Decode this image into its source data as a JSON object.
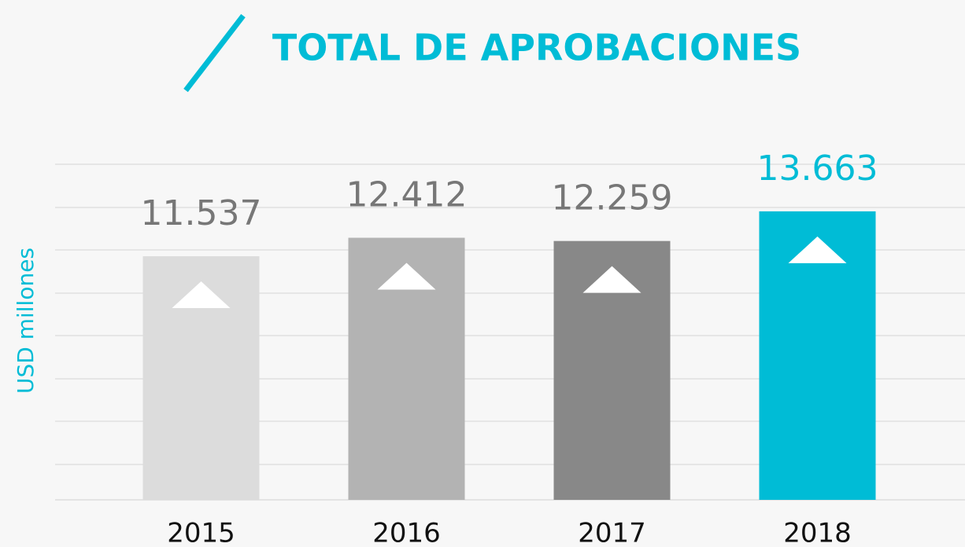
{
  "chart_data": {
    "type": "bar",
    "title": "TOTAL DE APROBACIONES",
    "y_label": "USD millones",
    "categories": [
      "2015",
      "2016",
      "2017",
      "2018"
    ],
    "values": [
      11537,
      12412,
      12259,
      13663
    ],
    "value_labels": [
      "11.537",
      "12.412",
      "12.259",
      "13.663"
    ],
    "colors": [
      "#dcdcdc",
      "#b3b3b3",
      "#888888",
      "#00bcd6"
    ],
    "label_colors": [
      "#777777",
      "#777777",
      "#777777",
      "#00bcd6"
    ],
    "ylim": [
      0,
      15000
    ],
    "grid": true
  }
}
